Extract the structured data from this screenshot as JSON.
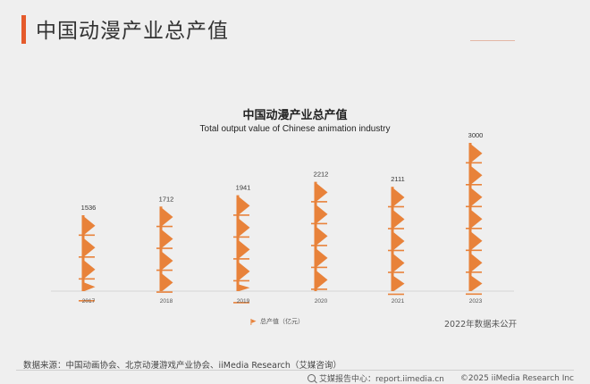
{
  "header": {
    "title": "中国动漫产业总产值"
  },
  "chart_data": {
    "type": "bar",
    "title": "中国动漫产业总产值",
    "subtitle": "Total output value of Chinese animation industry",
    "categories": [
      "2017",
      "2018",
      "2019",
      "2020",
      "2021",
      "2023"
    ],
    "series": [
      {
        "name": "总产值（亿元）",
        "values": [
          1536,
          1712,
          1941,
          2212,
          2111,
          3000
        ]
      }
    ],
    "ylim": [
      0,
      3000
    ],
    "grid": false,
    "legend": "bottom-center",
    "bar_color": "#e8823a",
    "note": "2022年数据未公开"
  },
  "footer": {
    "source": "数据来源：中国动画协会、北京动漫游戏产业协会、iiMedia Research（艾媒咨询）",
    "search_label": "艾媒报告中心：report.iimedia.cn",
    "copyright": "©2025  iiMedia Research  Inc",
    "search_icon": "search-icon"
  },
  "colors": {
    "accent": "#e55a2b",
    "bar": "#e8823a",
    "background": "#efefef"
  }
}
